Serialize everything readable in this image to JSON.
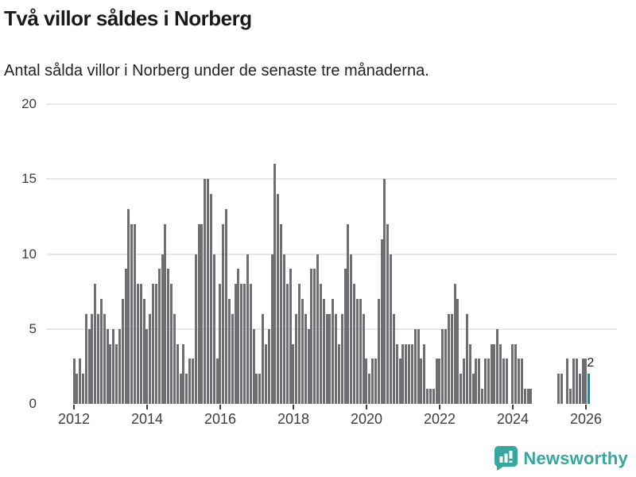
{
  "header": {
    "title": "Två villor såldes i Norberg",
    "subtitle": "Antal sålda villor i Norberg under de senaste tre månaderna."
  },
  "chart_data": {
    "type": "bar",
    "title": "Två villor såldes i Norberg",
    "subtitle": "Antal sålda villor i Norberg under de senaste tre månaderna.",
    "frequency": "monthly",
    "x_start": "2012-01",
    "x_end": "2026-02",
    "values": [
      3,
      2,
      3,
      2,
      6,
      5,
      6,
      8,
      6,
      7,
      6,
      5,
      4,
      5,
      4,
      5,
      7,
      9,
      13,
      12,
      12,
      8,
      8,
      7,
      5,
      6,
      8,
      8,
      9,
      10,
      12,
      9,
      8,
      6,
      4,
      2,
      4,
      2,
      3,
      3,
      10,
      12,
      12,
      15,
      15,
      14,
      10,
      3,
      8,
      12,
      13,
      7,
      6,
      8,
      9,
      8,
      8,
      10,
      8,
      5,
      2,
      2,
      6,
      4,
      5,
      10,
      16,
      14,
      12,
      10,
      8,
      9,
      4,
      6,
      8,
      7,
      6,
      5,
      9,
      9,
      10,
      8,
      7,
      6,
      6,
      7,
      6,
      4,
      6,
      9,
      12,
      10,
      8,
      7,
      7,
      6,
      3,
      2,
      3,
      3,
      7,
      11,
      15,
      12,
      10,
      6,
      4,
      3,
      4,
      4,
      4,
      4,
      5,
      5,
      3,
      4,
      1,
      1,
      1,
      3,
      3,
      5,
      5,
      6,
      6,
      8,
      7,
      2,
      3,
      6,
      4,
      2,
      3,
      3,
      1,
      3,
      3,
      4,
      4,
      5,
      4,
      3,
      3,
      0,
      4,
      4,
      3,
      3,
      1,
      1,
      1,
      0,
      0,
      0,
      0,
      0,
      0,
      0,
      0,
      2,
      2,
      0,
      3,
      1,
      3,
      3,
      2,
      3,
      3,
      2
    ],
    "highlight_last": true,
    "annotation": {
      "text": "2"
    },
    "x_tick_years": [
      2012,
      2014,
      2016,
      2018,
      2020,
      2022,
      2024,
      2026
    ],
    "y_ticks": [
      0,
      5,
      10,
      15,
      20
    ],
    "ylim": [
      0,
      20
    ],
    "grid": true,
    "legend": "none",
    "colors": {
      "bar": "#6e6e73",
      "highlight": "#0099a0",
      "grid": "#e8e8e8",
      "axis": "#3d3d3d",
      "tick_label": "#3d3d3d"
    }
  },
  "footer": {
    "brand": "Newsworthy",
    "brand_color": "#36a69e"
  }
}
